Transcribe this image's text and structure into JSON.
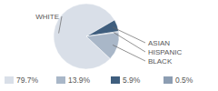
{
  "chart_data": {
    "type": "pie",
    "categories": [
      "WHITE",
      "ASIAN",
      "HISPANIC",
      "BLACK"
    ],
    "values": [
      79.7,
      5.9,
      0.5,
      13.9
    ],
    "value_labels": [
      "79.7%",
      "5.9%",
      "0.5%",
      "13.9%"
    ],
    "colors": [
      "#d9dfe8",
      "#3f5e7e",
      "#8c9db2",
      "#a9b7c8"
    ]
  }
}
